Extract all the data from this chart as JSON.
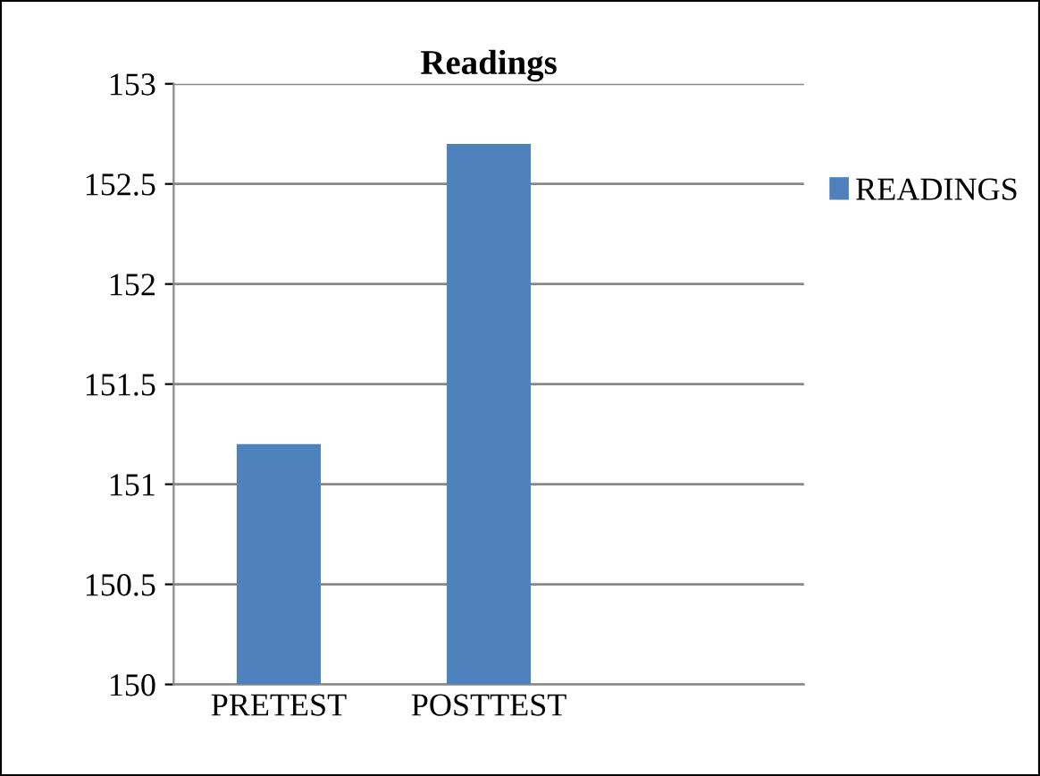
{
  "chart_data": {
    "type": "bar",
    "title": "Readings",
    "categories": [
      "PRETEST",
      "POSTTEST",
      null
    ],
    "series": [
      {
        "name": "READINGS",
        "color": "#4f81bd",
        "values": [
          151.2,
          152.7,
          null
        ]
      }
    ],
    "ylim": [
      150,
      153
    ],
    "yticks": [
      150,
      150.5,
      151,
      151.5,
      152,
      152.5,
      153
    ],
    "grid": "y",
    "legend": "right"
  }
}
